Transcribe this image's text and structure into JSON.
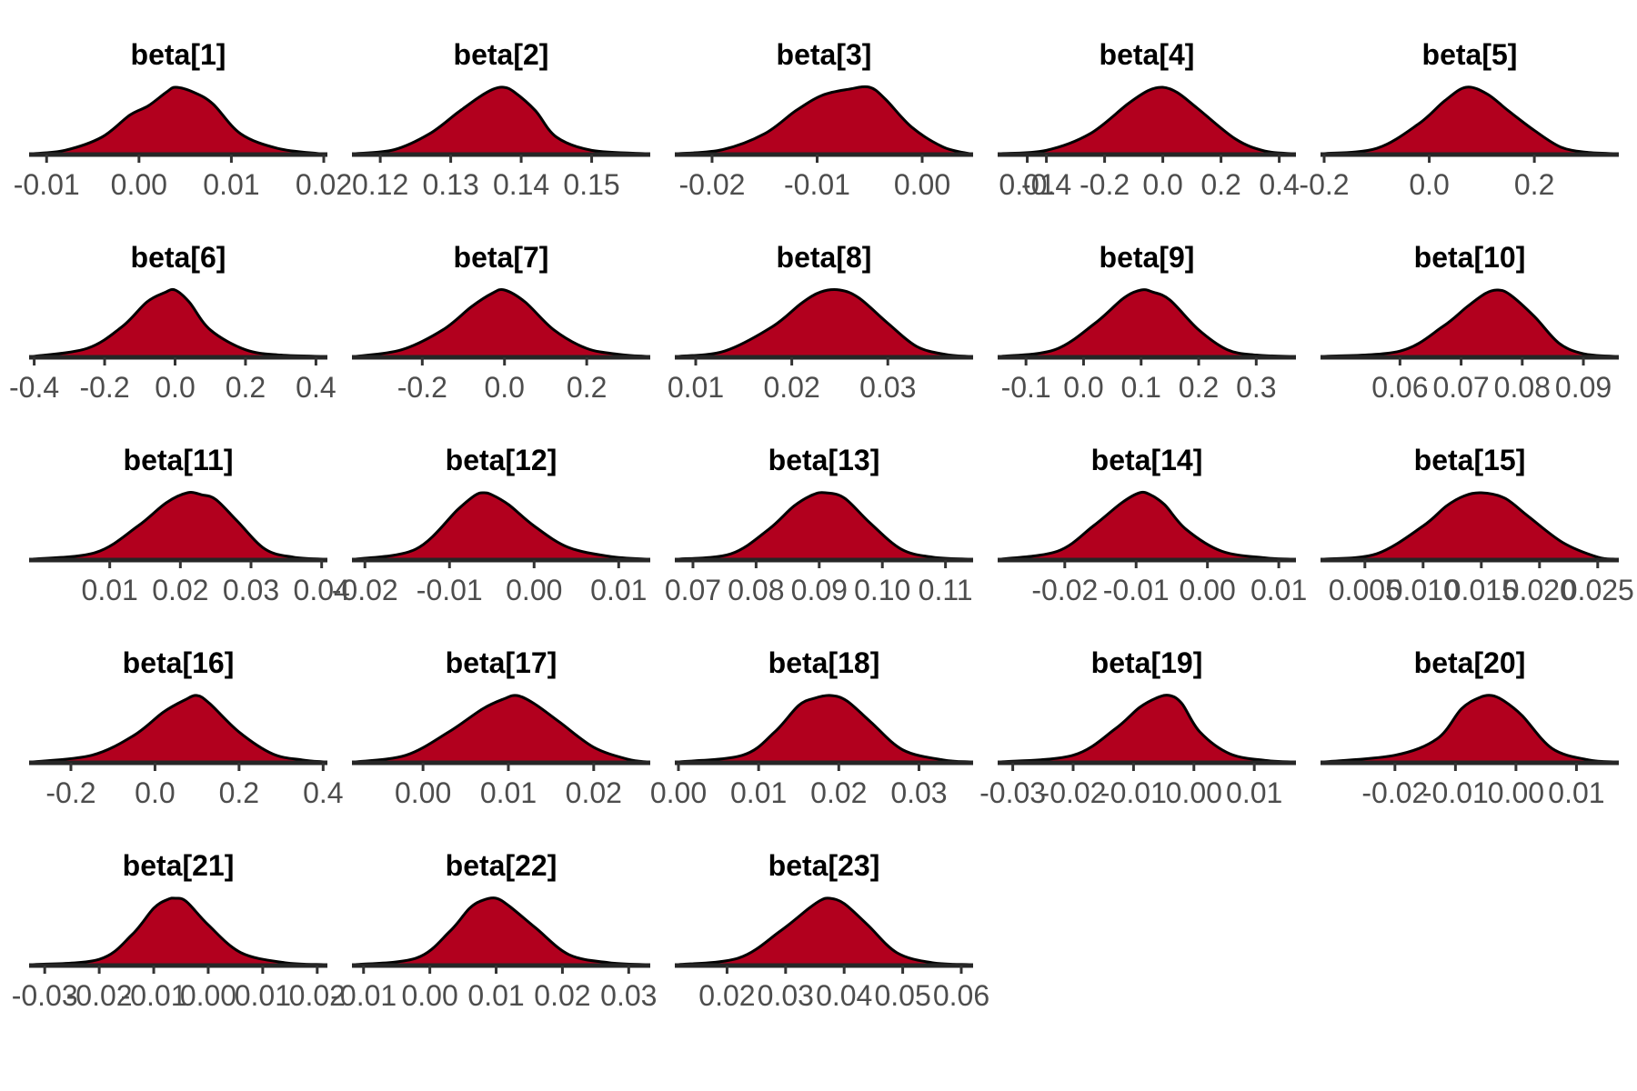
{
  "chart_data": {
    "type": "area",
    "subtype": "density-grid",
    "grid": false,
    "legend": "none",
    "fill_color": "#b2001e",
    "line_color": "#000000",
    "axis_color": "#262626",
    "tick_label_color": "#4d4d4d",
    "panels": [
      {
        "title": "beta[1]",
        "ticks": [
          "-0.01",
          "0.00",
          "0.01",
          "0.02"
        ],
        "tick_values": [
          -0.01,
          0.0,
          0.01,
          0.02
        ],
        "xlim": [
          -0.0115,
          0.02
        ],
        "density_x": [
          -0.0115,
          -0.008,
          -0.004,
          -0.001,
          0.001,
          0.003,
          0.004,
          0.006,
          0.008,
          0.011,
          0.015,
          0.0195
        ],
        "density_y": [
          0.0,
          0.05,
          0.25,
          0.58,
          0.72,
          0.93,
          1.0,
          0.92,
          0.75,
          0.3,
          0.08,
          0.0
        ]
      },
      {
        "title": "beta[2]",
        "ticks": [
          "0.12",
          "0.13",
          "0.14",
          "0.15"
        ],
        "tick_values": [
          0.12,
          0.13,
          0.14,
          0.15
        ],
        "xlim": [
          0.1165,
          0.1578
        ],
        "density_x": [
          0.1165,
          0.122,
          0.127,
          0.131,
          0.134,
          0.136,
          0.1375,
          0.139,
          0.142,
          0.145,
          0.15,
          0.1578
        ],
        "density_y": [
          0.0,
          0.06,
          0.3,
          0.62,
          0.85,
          0.97,
          1.0,
          0.93,
          0.65,
          0.25,
          0.05,
          0.0
        ]
      },
      {
        "title": "beta[3]",
        "ticks": [
          "-0.02",
          "-0.01",
          "0.00",
          "0.01"
        ],
        "tick_values": [
          -0.02,
          -0.01,
          0.0,
          0.01
        ],
        "xlim": [
          -0.0232,
          0.0045
        ],
        "density_x": [
          -0.0232,
          -0.019,
          -0.015,
          -0.012,
          -0.0095,
          -0.007,
          -0.005,
          -0.0035,
          -0.001,
          0.002,
          0.0045
        ],
        "density_y": [
          0.0,
          0.06,
          0.3,
          0.65,
          0.88,
          0.97,
          1.0,
          0.82,
          0.4,
          0.1,
          0.0
        ]
      },
      {
        "title": "beta[4]",
        "ticks": [
          "-0.4",
          "-0.2",
          "0.0",
          "0.2",
          "0.4"
        ],
        "tick_values": [
          -0.4,
          -0.2,
          0.0,
          0.2,
          0.4
        ],
        "xlim": [
          -0.555,
          0.445
        ],
        "density_x": [
          -0.555,
          -0.4,
          -0.25,
          -0.12,
          -0.05,
          0.0,
          0.05,
          0.12,
          0.25,
          0.35,
          0.445
        ],
        "density_y": [
          0.0,
          0.05,
          0.3,
          0.75,
          0.95,
          1.0,
          0.92,
          0.68,
          0.22,
          0.04,
          0.0
        ]
      },
      {
        "title": "beta[5]",
        "ticks": [
          "-0.2",
          "0.0",
          "0.2"
        ],
        "tick_values": [
          -0.2,
          0.0,
          0.2
        ],
        "xlim": [
          -0.2,
          0.3538
        ],
        "density_x": [
          -0.2,
          -0.1,
          -0.02,
          0.03,
          0.07,
          0.11,
          0.15,
          0.2,
          0.25,
          0.3,
          0.3538
        ],
        "density_y": [
          0.0,
          0.08,
          0.45,
          0.8,
          1.0,
          0.9,
          0.65,
          0.35,
          0.1,
          0.02,
          0.0
        ]
      },
      {
        "title": "beta[6]",
        "ticks": [
          "-0.4",
          "-0.2",
          "0.0",
          "0.2",
          "0.4"
        ],
        "tick_values": [
          -0.4,
          -0.2,
          0.0,
          0.2,
          0.4
        ],
        "xlim": [
          -0.4041,
          0.4222
        ],
        "density_x": [
          -0.4041,
          -0.25,
          -0.15,
          -0.08,
          -0.03,
          0.0,
          0.04,
          0.1,
          0.2,
          0.3,
          0.4222
        ],
        "density_y": [
          0.0,
          0.12,
          0.45,
          0.82,
          0.96,
          1.0,
          0.82,
          0.4,
          0.1,
          0.02,
          0.0
        ]
      },
      {
        "title": "beta[7]",
        "ticks": [
          "-0.2",
          "0.0",
          "0.2"
        ],
        "tick_values": [
          -0.2,
          0.0,
          0.2
        ],
        "xlim": [
          -0.3622,
          0.3457
        ],
        "density_x": [
          -0.3622,
          -0.25,
          -0.15,
          -0.08,
          -0.03,
          0.0,
          0.05,
          0.12,
          0.2,
          0.28,
          0.3457
        ],
        "density_y": [
          0.0,
          0.1,
          0.4,
          0.75,
          0.95,
          1.0,
          0.82,
          0.4,
          0.12,
          0.03,
          0.0
        ]
      },
      {
        "title": "beta[8]",
        "ticks": [
          "0.01",
          "0.02",
          "0.03"
        ],
        "tick_values": [
          0.01,
          0.02,
          0.03
        ],
        "xlim": [
          0.0082,
          0.0385
        ],
        "density_x": [
          0.0082,
          0.013,
          0.018,
          0.021,
          0.023,
          0.025,
          0.027,
          0.03,
          0.033,
          0.036,
          0.0385
        ],
        "density_y": [
          0.0,
          0.08,
          0.45,
          0.8,
          0.97,
          1.0,
          0.88,
          0.5,
          0.15,
          0.03,
          0.0
        ]
      },
      {
        "title": "beta[9]",
        "ticks": [
          "-0.1",
          "0.0",
          "0.1",
          "0.2",
          "0.3"
        ],
        "tick_values": [
          -0.1,
          0.0,
          0.1,
          0.2,
          0.3
        ],
        "xlim": [
          -0.1429,
          0.3627
        ],
        "density_x": [
          -0.1429,
          -0.05,
          0.02,
          0.07,
          0.1,
          0.12,
          0.15,
          0.2,
          0.25,
          0.3,
          0.3627
        ],
        "density_y": [
          0.0,
          0.1,
          0.5,
          0.88,
          1.0,
          0.97,
          0.85,
          0.4,
          0.1,
          0.02,
          0.0
        ]
      },
      {
        "title": "beta[10]",
        "ticks": [
          "0.06",
          "0.07",
          "0.08",
          "0.09"
        ],
        "tick_values": [
          0.06,
          0.07,
          0.08,
          0.09
        ],
        "xlim": [
          0.0476,
          0.0952
        ],
        "density_x": [
          0.0476,
          0.06,
          0.067,
          0.071,
          0.074,
          0.076,
          0.078,
          0.082,
          0.086,
          0.09,
          0.0952
        ],
        "density_y": [
          0.0,
          0.08,
          0.45,
          0.75,
          0.95,
          1.0,
          0.93,
          0.6,
          0.2,
          0.04,
          0.0
        ]
      },
      {
        "title": "beta[11]",
        "ticks": [
          "0.01",
          "0.02",
          "0.03",
          "0.04"
        ],
        "tick_values": [
          0.01,
          0.02,
          0.03,
          0.04
        ],
        "xlim": [
          -0.0009,
          0.0403
        ],
        "density_x": [
          -0.0009,
          0.008,
          0.014,
          0.018,
          0.021,
          0.023,
          0.025,
          0.028,
          0.032,
          0.036,
          0.0403
        ],
        "density_y": [
          0.0,
          0.1,
          0.5,
          0.85,
          1.0,
          0.97,
          0.9,
          0.58,
          0.15,
          0.03,
          0.0
        ]
      },
      {
        "title": "beta[12]",
        "ticks": [
          "-0.02",
          "-0.01",
          "0.00",
          "0.01"
        ],
        "tick_values": [
          -0.02,
          -0.01,
          0.0,
          0.01
        ],
        "xlim": [
          -0.0211,
          0.0133
        ],
        "density_x": [
          -0.0211,
          -0.014,
          -0.009,
          -0.007,
          -0.006,
          -0.005,
          -0.003,
          0.0,
          0.004,
          0.009,
          0.0133
        ],
        "density_y": [
          0.0,
          0.15,
          0.75,
          0.96,
          1.0,
          0.97,
          0.82,
          0.5,
          0.18,
          0.04,
          0.0
        ]
      },
      {
        "title": "beta[13]",
        "ticks": [
          "0.07",
          "0.08",
          "0.09",
          "0.10",
          "0.11"
        ],
        "tick_values": [
          0.07,
          0.08,
          0.09,
          0.1,
          0.11
        ],
        "xlim": [
          0.0677,
          0.1138
        ],
        "density_x": [
          0.0677,
          0.076,
          0.082,
          0.086,
          0.089,
          0.091,
          0.094,
          0.098,
          0.103,
          0.108,
          0.1138
        ],
        "density_y": [
          0.0,
          0.08,
          0.45,
          0.8,
          0.97,
          1.0,
          0.92,
          0.55,
          0.15,
          0.03,
          0.0
        ]
      },
      {
        "title": "beta[14]",
        "ticks": [
          "-0.02",
          "-0.01",
          "0.00",
          "0.01"
        ],
        "tick_values": [
          -0.02,
          -0.01,
          0.0,
          0.01
        ],
        "xlim": [
          -0.0289,
          0.0119
        ],
        "density_x": [
          -0.0289,
          -0.021,
          -0.016,
          -0.012,
          -0.0095,
          -0.008,
          -0.006,
          -0.003,
          0.002,
          0.008,
          0.0119
        ],
        "density_y": [
          0.0,
          0.12,
          0.5,
          0.85,
          1.0,
          0.97,
          0.82,
          0.45,
          0.12,
          0.02,
          0.0
        ]
      },
      {
        "title": "beta[15]",
        "ticks": [
          "0.005",
          "0.010",
          "0.015",
          "0.020",
          "0.025"
        ],
        "tick_values": [
          0.005,
          0.01,
          0.015,
          0.02,
          0.025
        ],
        "xlim": [
          0.0015,
          0.0265
        ],
        "density_x": [
          0.0015,
          0.006,
          0.01,
          0.012,
          0.0135,
          0.015,
          0.017,
          0.019,
          0.022,
          0.025,
          0.0265
        ],
        "density_y": [
          0.0,
          0.08,
          0.5,
          0.8,
          0.95,
          1.0,
          0.92,
          0.65,
          0.25,
          0.03,
          0.0
        ]
      },
      {
        "title": "beta[16]",
        "ticks": [
          "-0.2",
          "0.0",
          "0.2",
          "0.4"
        ],
        "tick_values": [
          -0.2,
          0.0,
          0.2,
          0.4
        ],
        "xlim": [
          -0.2908,
          0.4015
        ],
        "density_x": [
          -0.2908,
          -0.15,
          -0.05,
          0.02,
          0.07,
          0.1,
          0.13,
          0.2,
          0.28,
          0.35,
          0.4015
        ],
        "density_y": [
          0.0,
          0.1,
          0.4,
          0.75,
          0.93,
          1.0,
          0.88,
          0.45,
          0.12,
          0.03,
          0.0
        ]
      },
      {
        "title": "beta[17]",
        "ticks": [
          "0.00",
          "0.01",
          "0.02"
        ],
        "tick_values": [
          0.0,
          0.01,
          0.02
        ],
        "xlim": [
          -0.0079,
          0.0262
        ],
        "density_x": [
          -0.0079,
          -0.002,
          0.003,
          0.007,
          0.0095,
          0.011,
          0.013,
          0.016,
          0.02,
          0.024,
          0.0262
        ],
        "density_y": [
          0.0,
          0.1,
          0.45,
          0.8,
          0.95,
          1.0,
          0.88,
          0.6,
          0.22,
          0.04,
          0.0
        ]
      },
      {
        "title": "beta[18]",
        "ticks": [
          "0.00",
          "0.01",
          "0.02",
          "0.03"
        ],
        "tick_values": [
          0.0,
          0.01,
          0.02,
          0.03
        ],
        "xlim": [
          0.0,
          0.0363
        ],
        "density_x": [
          0.0,
          0.008,
          0.012,
          0.015,
          0.017,
          0.019,
          0.021,
          0.024,
          0.028,
          0.033,
          0.0363
        ],
        "density_y": [
          0.0,
          0.1,
          0.45,
          0.85,
          0.96,
          1.0,
          0.92,
          0.6,
          0.18,
          0.03,
          0.0
        ]
      },
      {
        "title": "beta[19]",
        "ticks": [
          "-0.03",
          "-0.02",
          "-0.01",
          "0.00",
          "0.01"
        ],
        "tick_values": [
          -0.03,
          -0.02,
          -0.01,
          0.0,
          0.01
        ],
        "xlim": [
          -0.0319,
          0.0163
        ],
        "density_x": [
          -0.0319,
          -0.02,
          -0.013,
          -0.009,
          -0.006,
          -0.004,
          -0.002,
          0.001,
          0.006,
          0.012,
          0.0163
        ],
        "density_y": [
          0.0,
          0.1,
          0.5,
          0.82,
          0.97,
          1.0,
          0.88,
          0.45,
          0.12,
          0.02,
          0.0
        ]
      },
      {
        "title": "beta[20]",
        "ticks": [
          "-0.02",
          "-0.01",
          "0.00",
          "0.01"
        ],
        "tick_values": [
          -0.02,
          -0.01,
          0.0,
          0.01
        ],
        "xlim": [
          -0.0317,
          0.0164
        ],
        "density_x": [
          -0.0317,
          -0.02,
          -0.013,
          -0.009,
          -0.006,
          -0.004,
          -0.002,
          0.001,
          0.006,
          0.012,
          0.0164
        ],
        "density_y": [
          0.0,
          0.1,
          0.35,
          0.8,
          0.97,
          1.0,
          0.92,
          0.7,
          0.2,
          0.03,
          0.0
        ]
      },
      {
        "title": "beta[21]",
        "ticks": [
          "-0.03",
          "-0.02",
          "-0.01",
          "0.00",
          "0.01",
          "0.02"
        ],
        "tick_values": [
          -0.03,
          -0.02,
          -0.01,
          0.0,
          0.01,
          0.02
        ],
        "xlim": [
          -0.0322,
          0.0212
        ],
        "density_x": [
          -0.0322,
          -0.02,
          -0.014,
          -0.01,
          -0.0075,
          -0.006,
          -0.004,
          0.0,
          0.006,
          0.014,
          0.0212
        ],
        "density_y": [
          0.0,
          0.08,
          0.45,
          0.85,
          0.98,
          1.0,
          0.95,
          0.6,
          0.18,
          0.03,
          0.0
        ]
      },
      {
        "title": "beta[22]",
        "ticks": [
          "-0.01",
          "0.00",
          "0.01",
          "0.02",
          "0.03"
        ],
        "tick_values": [
          -0.01,
          0.0,
          0.01,
          0.02,
          0.03
        ],
        "xlim": [
          -0.0112,
          0.0327
        ],
        "density_x": [
          -0.0112,
          -0.002,
          0.003,
          0.006,
          0.008,
          0.01,
          0.012,
          0.016,
          0.021,
          0.027,
          0.0327
        ],
        "density_y": [
          0.0,
          0.1,
          0.5,
          0.85,
          0.97,
          1.0,
          0.88,
          0.55,
          0.15,
          0.03,
          0.0
        ]
      },
      {
        "title": "beta[23]",
        "ticks": [
          "0.02",
          "0.03",
          "0.04",
          "0.05",
          "0.06"
        ],
        "tick_values": [
          0.02,
          0.03,
          0.04,
          0.05,
          0.06
        ],
        "xlim": [
          0.0117,
          0.0614
        ],
        "density_x": [
          0.0117,
          0.022,
          0.029,
          0.034,
          0.036,
          0.0375,
          0.04,
          0.044,
          0.049,
          0.055,
          0.0614
        ],
        "density_y": [
          0.0,
          0.1,
          0.5,
          0.85,
          0.97,
          1.0,
          0.92,
          0.6,
          0.18,
          0.03,
          0.0
        ]
      }
    ]
  }
}
